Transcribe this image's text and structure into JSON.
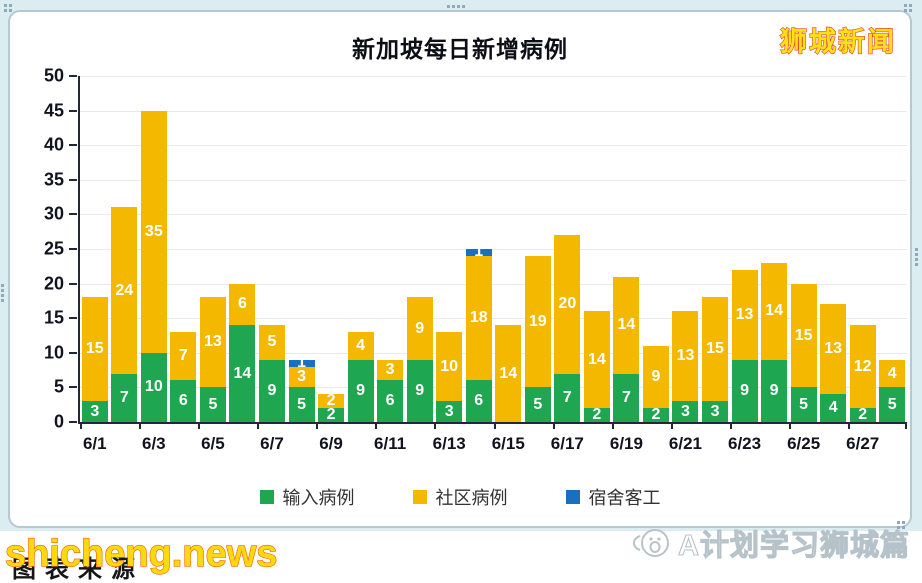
{
  "brand": {
    "name": "狮城新闻"
  },
  "chart_data": {
    "type": "bar",
    "stacked": true,
    "title": "新加坡每日新增病例",
    "categories": [
      "6/1",
      "6/2",
      "6/3",
      "6/4",
      "6/5",
      "6/6",
      "6/7",
      "6/8",
      "6/9",
      "6/10",
      "6/11",
      "6/12",
      "6/13",
      "6/14",
      "6/15",
      "6/16",
      "6/17",
      "6/18",
      "6/19",
      "6/20",
      "6/21",
      "6/22",
      "6/23",
      "6/24",
      "6/25",
      "6/26",
      "6/27",
      "6/28"
    ],
    "x_tick_labels": [
      "6/1",
      "6/3",
      "6/5",
      "6/7",
      "6/9",
      "6/11",
      "6/13",
      "6/15",
      "6/17",
      "6/19",
      "6/21",
      "6/23",
      "6/25",
      "6/27"
    ],
    "series": [
      {
        "name": "输入病例",
        "color": "#1fa650",
        "values": [
          3,
          7,
          10,
          6,
          5,
          14,
          9,
          5,
          2,
          9,
          6,
          9,
          3,
          6,
          0,
          5,
          7,
          2,
          7,
          2,
          3,
          3,
          9,
          9,
          5,
          4,
          2,
          5
        ]
      },
      {
        "name": "社区病例",
        "color": "#f5b800",
        "values": [
          15,
          24,
          35,
          7,
          13,
          6,
          5,
          3,
          2,
          4,
          3,
          9,
          10,
          18,
          14,
          19,
          20,
          14,
          14,
          9,
          13,
          15,
          13,
          14,
          15,
          13,
          12,
          4
        ]
      },
      {
        "name": "宿舍客工",
        "color": "#1a6fc0",
        "values": [
          0,
          0,
          0,
          0,
          0,
          0,
          0,
          1,
          0,
          0,
          0,
          0,
          0,
          1,
          0,
          0,
          0,
          0,
          0,
          0,
          0,
          0,
          0,
          0,
          0,
          0,
          0,
          0
        ]
      }
    ],
    "ylim": [
      0,
      50
    ],
    "ytick_step": 5,
    "grid": true,
    "legend_position": "bottom",
    "bar_label_color": "#ffffff"
  },
  "footer": {
    "watermark": "shicheng.news",
    "source_text": "图表来源",
    "channel": "A计划学习狮城篇"
  }
}
